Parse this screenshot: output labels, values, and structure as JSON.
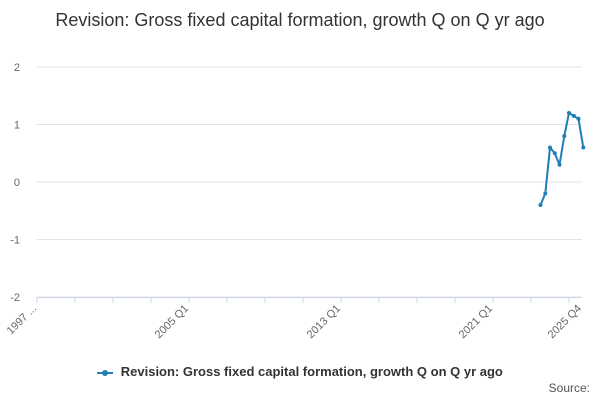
{
  "chart_data": {
    "type": "line",
    "title": "Revision: Gross fixed capital formation, growth Q on Q yr ago",
    "xlabel": "",
    "ylabel": "",
    "x_ticks": [
      "1997 ...",
      "2005 Q1",
      "2013 Q1",
      "2021 Q1",
      "2025 Q4"
    ],
    "y_ticks": [
      2,
      1,
      0,
      -1,
      -2
    ],
    "ylim": [
      -2,
      2
    ],
    "grid": true,
    "legend_position": "bottom",
    "series": [
      {
        "name": "Revision: Gross fixed capital formation, growth Q on Q yr ago",
        "color": "#1f7fb4",
        "x": [
          "2023 Q3",
          "2023 Q4",
          "2024 Q1",
          "2024 Q2",
          "2024 Q3",
          "2024 Q4",
          "2025 Q1",
          "2025 Q2",
          "2025 Q3",
          "2025 Q4"
        ],
        "values": [
          -0.4,
          -0.2,
          0.6,
          0.5,
          0.3,
          0.8,
          1.2,
          1.15,
          1.1,
          0.6
        ]
      }
    ]
  },
  "legend": {
    "label": "Revision: Gross fixed capital formation, growth Q on Q yr ago"
  },
  "source_label": "Source:"
}
